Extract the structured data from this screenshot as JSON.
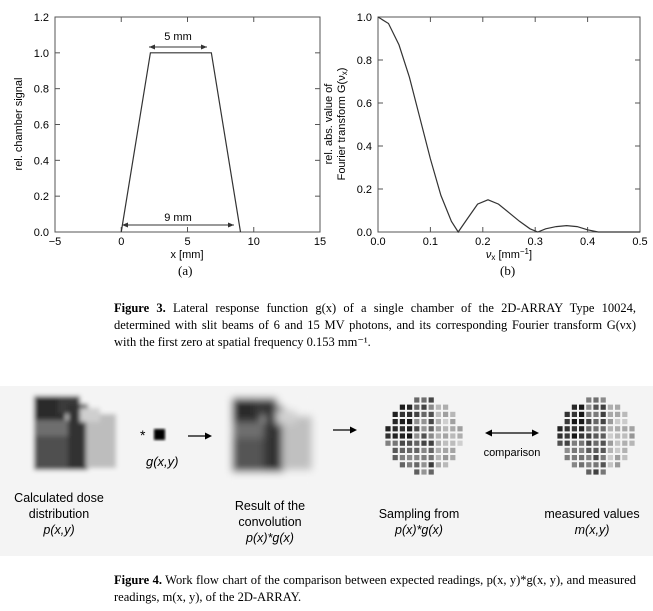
{
  "figure3": {
    "left_chart": {
      "ylabel": "rel. chamber signal",
      "xlabel": "x [mm]",
      "xticks": [
        "−5",
        "0",
        "5",
        "10",
        "15"
      ],
      "yticks": [
        "0.0",
        "0.2",
        "0.4",
        "0.6",
        "0.8",
        "1.0",
        "1.2"
      ],
      "top_annotation": "5 mm",
      "bottom_annotation": "9 mm",
      "sublabel": "(a)"
    },
    "right_chart": {
      "ylabel_line1": "rel. abs. value of",
      "ylabel_line2": "Fourier transform G(ν",
      "ylabel_sub": "x",
      "ylabel_end": ")",
      "xlabel_main": "ν",
      "xlabel_sub": "x",
      "xlabel_unit": " [mm",
      "xlabel_exp": "−1",
      "xlabel_end": "]",
      "xticks": [
        "0.0",
        "0.1",
        "0.2",
        "0.3",
        "0.4",
        "0.5"
      ],
      "yticks": [
        "0.0",
        "0.2",
        "0.4",
        "0.6",
        "0.8",
        "1.0"
      ],
      "sublabel": "(b)"
    },
    "caption_label": "Figure 3.",
    "caption_text": "Lateral response function g(x) of a single chamber of the 2D-ARRAY Type 10024, determined with slit beams of 6 and 15 MV photons, and its corresponding Fourier transform G(νx) with the first zero at spatial frequency 0.153 mm⁻¹."
  },
  "figure4": {
    "operator_star": "*",
    "kernel_label": "g(x,y)",
    "comparison_label": "comparison",
    "labels": {
      "calc_line1": "Calculated dose",
      "calc_line2": "distribution",
      "calc_line3": "p(x,y)",
      "conv_line1": "Result of the",
      "conv_line2": "convolution",
      "conv_line3": "p(x)*g(x)",
      "samp_line1": "Sampling from",
      "samp_line2": "p(x)*g(x)",
      "meas_line1": "measured values",
      "meas_line2": "m(x,y)"
    },
    "caption_label": "Figure 4.",
    "caption_text": "Work flow chart of the comparison between expected readings, p(x, y)*g(x, y), and measured readings, m(x, y), of the 2D-ARRAY."
  },
  "chart_data": [
    {
      "type": "line",
      "xlabel": "x [mm]",
      "ylabel": "rel. chamber signal",
      "xlim": [
        -5,
        15
      ],
      "ylim": [
        0,
        1.2
      ],
      "x": [
        0,
        2.2,
        6.8,
        9
      ],
      "y": [
        0,
        1.0,
        1.0,
        0
      ],
      "annotations": [
        "5 mm",
        "9 mm"
      ]
    },
    {
      "type": "line",
      "xlabel": "νx [mm−1]",
      "ylabel": "rel. abs. value of Fourier transform G(νx)",
      "xlim": [
        0,
        0.5
      ],
      "ylim": [
        0,
        1.0
      ],
      "x": [
        0,
        0.02,
        0.04,
        0.06,
        0.08,
        0.1,
        0.12,
        0.14,
        0.153,
        0.17,
        0.19,
        0.21,
        0.23,
        0.25,
        0.27,
        0.29,
        0.305,
        0.32,
        0.34,
        0.36,
        0.38,
        0.4,
        0.42,
        0.45,
        0.48,
        0.5
      ],
      "y": [
        1.0,
        0.97,
        0.87,
        0.72,
        0.53,
        0.34,
        0.17,
        0.05,
        0.0,
        0.06,
        0.13,
        0.15,
        0.13,
        0.09,
        0.05,
        0.015,
        0.0,
        0.015,
        0.025,
        0.03,
        0.025,
        0.01,
        0.0,
        0.0,
        0.0,
        0.0
      ]
    }
  ]
}
